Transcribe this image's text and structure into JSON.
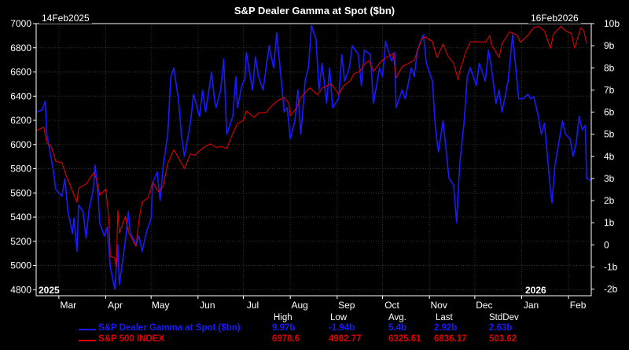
{
  "chart_data": {
    "type": "line",
    "title": "S&P Dealer Gamma at Spot ($bn)",
    "start_date_label": "14Feb2025",
    "end_date_label": "16Feb2026",
    "year_labels": {
      "left": "2025",
      "right": "2026"
    },
    "x_tick_labels": [
      "Mar",
      "Apr",
      "May",
      "Jun",
      "Jul",
      "Aug",
      "Sep",
      "Oct",
      "Nov",
      "Dec",
      "Jan",
      "Feb"
    ],
    "y_left": {
      "ticks": [
        4800,
        5000,
        5200,
        5400,
        5600,
        5800,
        6000,
        6200,
        6400,
        6600,
        6800,
        7000
      ],
      "range": [
        4750,
        7000
      ]
    },
    "y_right": {
      "ticks": [
        "-2b",
        "-1b",
        "0",
        "1b",
        "2b",
        "3b",
        "4b",
        "5b",
        "6b",
        "7b",
        "8b",
        "9b",
        "10b"
      ],
      "range": [
        -2.3,
        10
      ]
    },
    "x_range": [
      "2025-02-14",
      "2026-02-16"
    ],
    "x_ticks_dates": [
      "2025-03-01",
      "2025-04-01",
      "2025-05-01",
      "2025-06-01",
      "2025-07-01",
      "2025-08-01",
      "2025-09-01",
      "2025-10-01",
      "2025-11-01",
      "2025-12-01",
      "2026-01-01",
      "2026-02-01"
    ],
    "grid": true,
    "series": [
      {
        "name": "S&P Dealer Gamma at Spot ($bn)",
        "color": "#1a1aff",
        "axis": "right",
        "points": [
          [
            "2025-02-14",
            6.0
          ],
          [
            "2025-02-18",
            6.1
          ],
          [
            "2025-02-20",
            6.5
          ],
          [
            "2025-02-21",
            5.0
          ],
          [
            "2025-02-25",
            3.5
          ],
          [
            "2025-02-27",
            2.5
          ],
          [
            "2025-03-03",
            2.2
          ],
          [
            "2025-03-05",
            3.0
          ],
          [
            "2025-03-07",
            1.5
          ],
          [
            "2025-03-10",
            0.5
          ],
          [
            "2025-03-11",
            1.2
          ],
          [
            "2025-03-13",
            -0.3
          ],
          [
            "2025-03-14",
            1.8
          ],
          [
            "2025-03-17",
            1.5
          ],
          [
            "2025-03-19",
            0.3
          ],
          [
            "2025-03-21",
            1.6
          ],
          [
            "2025-03-24",
            2.6
          ],
          [
            "2025-03-25",
            3.6
          ],
          [
            "2025-03-27",
            2.2
          ],
          [
            "2025-03-28",
            1.0
          ],
          [
            "2025-03-31",
            0.4
          ],
          [
            "2025-04-02",
            0.8
          ],
          [
            "2025-04-04",
            -1.0
          ],
          [
            "2025-04-07",
            -2.0
          ],
          [
            "2025-04-09",
            0.0
          ],
          [
            "2025-04-10",
            -1.8
          ],
          [
            "2025-04-14",
            0.2
          ],
          [
            "2025-04-16",
            1.5
          ],
          [
            "2025-04-17",
            0.6
          ],
          [
            "2025-04-21",
            0.0
          ],
          [
            "2025-04-23",
            0.4
          ],
          [
            "2025-04-25",
            -0.3
          ],
          [
            "2025-04-28",
            0.6
          ],
          [
            "2025-05-01",
            1.2
          ],
          [
            "2025-05-02",
            2.8
          ],
          [
            "2025-05-05",
            3.3
          ],
          [
            "2025-05-07",
            2.0
          ],
          [
            "2025-05-09",
            3.6
          ],
          [
            "2025-05-12",
            5.0
          ],
          [
            "2025-05-14",
            7.6
          ],
          [
            "2025-05-16",
            8.0
          ],
          [
            "2025-05-19",
            6.6
          ],
          [
            "2025-05-21",
            5.0
          ],
          [
            "2025-05-23",
            4.0
          ],
          [
            "2025-05-27",
            5.5
          ],
          [
            "2025-05-29",
            6.8
          ],
          [
            "2025-06-02",
            5.8
          ],
          [
            "2025-06-04",
            7.0
          ],
          [
            "2025-06-06",
            6.0
          ],
          [
            "2025-06-10",
            7.8
          ],
          [
            "2025-06-12",
            6.5
          ],
          [
            "2025-06-13",
            6.2
          ],
          [
            "2025-06-16",
            7.0
          ],
          [
            "2025-06-18",
            8.4
          ],
          [
            "2025-06-20",
            5.0
          ],
          [
            "2025-06-24",
            5.8
          ],
          [
            "2025-06-26",
            7.6
          ],
          [
            "2025-06-27",
            6.2
          ],
          [
            "2025-06-30",
            7.2
          ],
          [
            "2025-07-02",
            7.5
          ],
          [
            "2025-07-03",
            8.7
          ],
          [
            "2025-07-07",
            7.0
          ],
          [
            "2025-07-09",
            8.5
          ],
          [
            "2025-07-11",
            7.6
          ],
          [
            "2025-07-14",
            7.0
          ],
          [
            "2025-07-16",
            8.0
          ],
          [
            "2025-07-18",
            9.0
          ],
          [
            "2025-07-21",
            8.0
          ],
          [
            "2025-07-23",
            9.6
          ],
          [
            "2025-07-25",
            8.2
          ],
          [
            "2025-07-28",
            6.0
          ],
          [
            "2025-07-30",
            6.2
          ],
          [
            "2025-08-01",
            4.8
          ],
          [
            "2025-08-04",
            5.6
          ],
          [
            "2025-08-06",
            7.0
          ],
          [
            "2025-08-08",
            5.0
          ],
          [
            "2025-08-11",
            7.5
          ],
          [
            "2025-08-13",
            8.0
          ],
          [
            "2025-08-15",
            9.9
          ],
          [
            "2025-08-18",
            9.3
          ],
          [
            "2025-08-20",
            7.0
          ],
          [
            "2025-08-22",
            8.2
          ],
          [
            "2025-08-25",
            6.4
          ],
          [
            "2025-08-27",
            8.0
          ],
          [
            "2025-08-29",
            6.2
          ],
          [
            "2025-09-02",
            6.6
          ],
          [
            "2025-09-04",
            8.6
          ],
          [
            "2025-09-06",
            7.4
          ],
          [
            "2025-09-09",
            8.0
          ],
          [
            "2025-09-11",
            9.0
          ],
          [
            "2025-09-15",
            8.6
          ],
          [
            "2025-09-17",
            7.2
          ],
          [
            "2025-09-19",
            8.8
          ],
          [
            "2025-09-23",
            8.6
          ],
          [
            "2025-09-25",
            6.4
          ],
          [
            "2025-09-29",
            8.0
          ],
          [
            "2025-10-01",
            7.6
          ],
          [
            "2025-10-03",
            9.2
          ],
          [
            "2025-10-07",
            8.3
          ],
          [
            "2025-10-09",
            8.7
          ],
          [
            "2025-10-10",
            6.2
          ],
          [
            "2025-10-14",
            7.0
          ],
          [
            "2025-10-16",
            6.6
          ],
          [
            "2025-10-20",
            8.0
          ],
          [
            "2025-10-22",
            7.6
          ],
          [
            "2025-10-24",
            8.8
          ],
          [
            "2025-10-28",
            9.5
          ],
          [
            "2025-10-30",
            8.2
          ],
          [
            "2025-11-03",
            7.4
          ],
          [
            "2025-11-05",
            5.2
          ],
          [
            "2025-11-07",
            4.2
          ],
          [
            "2025-11-10",
            5.6
          ],
          [
            "2025-11-12",
            4.3
          ],
          [
            "2025-11-14",
            3.0
          ],
          [
            "2025-11-17",
            2.7
          ],
          [
            "2025-11-19",
            1.0
          ],
          [
            "2025-11-21",
            3.6
          ],
          [
            "2025-11-24",
            5.6
          ],
          [
            "2025-11-26",
            7.6
          ],
          [
            "2025-11-28",
            8.0
          ],
          [
            "2025-12-02",
            7.2
          ],
          [
            "2025-12-04",
            8.2
          ],
          [
            "2025-12-08",
            7.4
          ],
          [
            "2025-12-10",
            8.8
          ],
          [
            "2025-12-12",
            8.0
          ],
          [
            "2025-12-15",
            6.4
          ],
          [
            "2025-12-17",
            7.0
          ],
          [
            "2025-12-19",
            6.0
          ],
          [
            "2025-12-23",
            7.4
          ],
          [
            "2025-12-26",
            9.5
          ],
          [
            "2025-12-30",
            6.6
          ],
          [
            "2026-01-02",
            6.6
          ],
          [
            "2026-01-05",
            6.8
          ],
          [
            "2026-01-07",
            6.6
          ],
          [
            "2026-01-09",
            6.7
          ],
          [
            "2026-01-12",
            5.8
          ],
          [
            "2026-01-14",
            5.0
          ],
          [
            "2026-01-16",
            5.5
          ],
          [
            "2026-01-20",
            2.5
          ],
          [
            "2026-01-21",
            1.9
          ],
          [
            "2026-01-23",
            3.6
          ],
          [
            "2026-01-26",
            4.8
          ],
          [
            "2026-01-28",
            5.6
          ],
          [
            "2026-01-30",
            5.0
          ],
          [
            "2026-02-02",
            4.8
          ],
          [
            "2026-02-04",
            4.0
          ],
          [
            "2026-02-06",
            4.6
          ],
          [
            "2026-02-08",
            5.8
          ],
          [
            "2026-02-10",
            5.2
          ],
          [
            "2026-02-12",
            5.4
          ],
          [
            "2026-02-13",
            3.0
          ],
          [
            "2026-02-16",
            2.9
          ]
        ]
      },
      {
        "name": "S&P 500 INDEX",
        "color": "#e00000",
        "axis": "left",
        "points": [
          [
            "2025-02-14",
            6114
          ],
          [
            "2025-02-19",
            6144
          ],
          [
            "2025-02-21",
            6013
          ],
          [
            "2025-02-24",
            5983
          ],
          [
            "2025-02-27",
            5861
          ],
          [
            "2025-03-03",
            5849
          ],
          [
            "2025-03-06",
            5738
          ],
          [
            "2025-03-10",
            5614
          ],
          [
            "2025-03-13",
            5522
          ],
          [
            "2025-03-14",
            5639
          ],
          [
            "2025-03-19",
            5675
          ],
          [
            "2025-03-24",
            5767
          ],
          [
            "2025-03-26",
            5712
          ],
          [
            "2025-03-28",
            5581
          ],
          [
            "2025-04-01",
            5633
          ],
          [
            "2025-04-03",
            5396
          ],
          [
            "2025-04-04",
            5074
          ],
          [
            "2025-04-07",
            5062
          ],
          [
            "2025-04-08",
            4982
          ],
          [
            "2025-04-09",
            5456
          ],
          [
            "2025-04-10",
            5268
          ],
          [
            "2025-04-14",
            5406
          ],
          [
            "2025-04-16",
            5275
          ],
          [
            "2025-04-21",
            5158
          ],
          [
            "2025-04-23",
            5376
          ],
          [
            "2025-04-25",
            5525
          ],
          [
            "2025-04-29",
            5560
          ],
          [
            "2025-05-02",
            5686
          ],
          [
            "2025-05-06",
            5607
          ],
          [
            "2025-05-09",
            5659
          ],
          [
            "2025-05-12",
            5844
          ],
          [
            "2025-05-16",
            5958
          ],
          [
            "2025-05-21",
            5845
          ],
          [
            "2025-05-23",
            5802
          ],
          [
            "2025-05-27",
            5921
          ],
          [
            "2025-05-30",
            5912
          ],
          [
            "2025-06-04",
            5970
          ],
          [
            "2025-06-09",
            6006
          ],
          [
            "2025-06-13",
            5977
          ],
          [
            "2025-06-17",
            5982
          ],
          [
            "2025-06-20",
            5967
          ],
          [
            "2025-06-24",
            6092
          ],
          [
            "2025-06-27",
            6173
          ],
          [
            "2025-07-01",
            6198
          ],
          [
            "2025-07-03",
            6279
          ],
          [
            "2025-07-08",
            6225
          ],
          [
            "2025-07-11",
            6260
          ],
          [
            "2025-07-16",
            6263
          ],
          [
            "2025-07-18",
            6297
          ],
          [
            "2025-07-23",
            6358
          ],
          [
            "2025-07-28",
            6390
          ],
          [
            "2025-07-31",
            6339
          ],
          [
            "2025-08-01",
            6238
          ],
          [
            "2025-08-05",
            6299
          ],
          [
            "2025-08-08",
            6389
          ],
          [
            "2025-08-12",
            6445
          ],
          [
            "2025-08-14",
            6469
          ],
          [
            "2025-08-19",
            6411
          ],
          [
            "2025-08-22",
            6467
          ],
          [
            "2025-08-28",
            6502
          ],
          [
            "2025-09-02",
            6416
          ],
          [
            "2025-09-05",
            6482
          ],
          [
            "2025-09-10",
            6532
          ],
          [
            "2025-09-12",
            6584
          ],
          [
            "2025-09-16",
            6606
          ],
          [
            "2025-09-19",
            6664
          ],
          [
            "2025-09-22",
            6693
          ],
          [
            "2025-09-25",
            6605
          ],
          [
            "2025-09-30",
            6688
          ],
          [
            "2025-10-03",
            6716
          ],
          [
            "2025-10-08",
            6753
          ],
          [
            "2025-10-10",
            6552
          ],
          [
            "2025-10-14",
            6644
          ],
          [
            "2025-10-17",
            6664
          ],
          [
            "2025-10-22",
            6699
          ],
          [
            "2025-10-27",
            6875
          ],
          [
            "2025-10-29",
            6890
          ],
          [
            "2025-11-03",
            6851
          ],
          [
            "2025-11-06",
            6720
          ],
          [
            "2025-11-10",
            6832
          ],
          [
            "2025-11-13",
            6737
          ],
          [
            "2025-11-17",
            6672
          ],
          [
            "2025-11-20",
            6538
          ],
          [
            "2025-11-21",
            6603
          ],
          [
            "2025-11-25",
            6765
          ],
          [
            "2025-11-28",
            6849
          ],
          [
            "2025-12-03",
            6850
          ],
          [
            "2025-12-08",
            6846
          ],
          [
            "2025-12-11",
            6901
          ],
          [
            "2025-12-12",
            6827
          ],
          [
            "2025-12-17",
            6721
          ],
          [
            "2025-12-19",
            6834
          ],
          [
            "2025-12-24",
            6932
          ],
          [
            "2025-12-29",
            6905
          ],
          [
            "2025-12-31",
            6845
          ],
          [
            "2026-01-05",
            6902
          ],
          [
            "2026-01-09",
            6966
          ],
          [
            "2026-01-12",
            6977
          ],
          [
            "2026-01-16",
            6940
          ],
          [
            "2026-01-20",
            6796
          ],
          [
            "2026-01-22",
            6913
          ],
          [
            "2026-01-27",
            6978
          ],
          [
            "2026-01-30",
            6939
          ],
          [
            "2026-02-03",
            6917
          ],
          [
            "2026-02-05",
            6798
          ],
          [
            "2026-02-09",
            6964
          ],
          [
            "2026-02-11",
            6941
          ],
          [
            "2026-02-13",
            6836
          ]
        ]
      }
    ]
  },
  "legend": {
    "headers": [
      "High",
      "Low",
      "Avg.",
      "Last",
      "StdDev"
    ],
    "rows": [
      {
        "name": "S&P Dealer Gamma at Spot ($bn)",
        "color": "#1a1aff",
        "values": [
          "9.97b",
          "-1.94b",
          "5.4b",
          "2.92b",
          "2.63b"
        ]
      },
      {
        "name": "S&P 500 INDEX",
        "color": "#e00000",
        "values": [
          "6978.6",
          "4982.77",
          "6325.61",
          "6836.17",
          "503.62"
        ]
      }
    ]
  },
  "colors": {
    "background": "#000000",
    "grid": "#333333",
    "axis": "#ffffff"
  }
}
